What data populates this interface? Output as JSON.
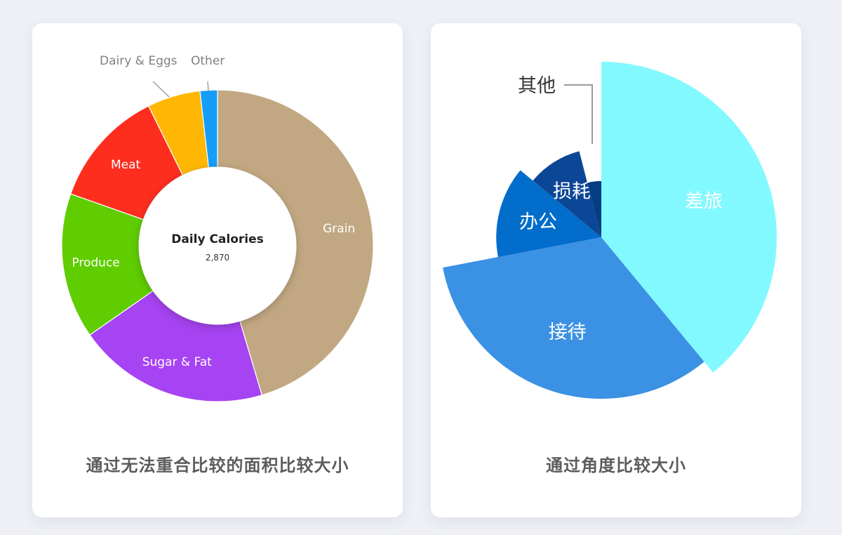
{
  "chart_data": [
    {
      "type": "pie",
      "variant": "donut",
      "center_title": "Daily Calories",
      "center_value": "2,870",
      "segments": [
        {
          "name": "Grain",
          "value": 45.4,
          "color": "#c2a882"
        },
        {
          "name": "Sugar & Fat",
          "value": 19.9,
          "color": "#a643f2"
        },
        {
          "name": "Produce",
          "value": 15.1,
          "color": "#5fcd00"
        },
        {
          "name": "Meat",
          "value": 12.3,
          "color": "#fe2e1f"
        },
        {
          "name": "Dairy & Eggs",
          "value": 5.5,
          "color": "#ffb703"
        },
        {
          "name": "Other",
          "value": 1.8,
          "color": "#159ef8"
        }
      ],
      "caption": "通过无法重合比较的面积比较大小"
    },
    {
      "type": "pie",
      "variant": "rose",
      "segments": [
        {
          "name": "差旅",
          "value": 39,
          "color": "#82f9ff"
        },
        {
          "name": "接待",
          "value": 33,
          "color": "#3b91e3"
        },
        {
          "name": "办公",
          "value": 14,
          "color": "#026dcb"
        },
        {
          "name": "损耗",
          "value": 10,
          "color": "#0c4797"
        },
        {
          "name": "其他",
          "value": 4,
          "color": "#063c83"
        }
      ],
      "caption": "通过角度比较大小"
    }
  ]
}
